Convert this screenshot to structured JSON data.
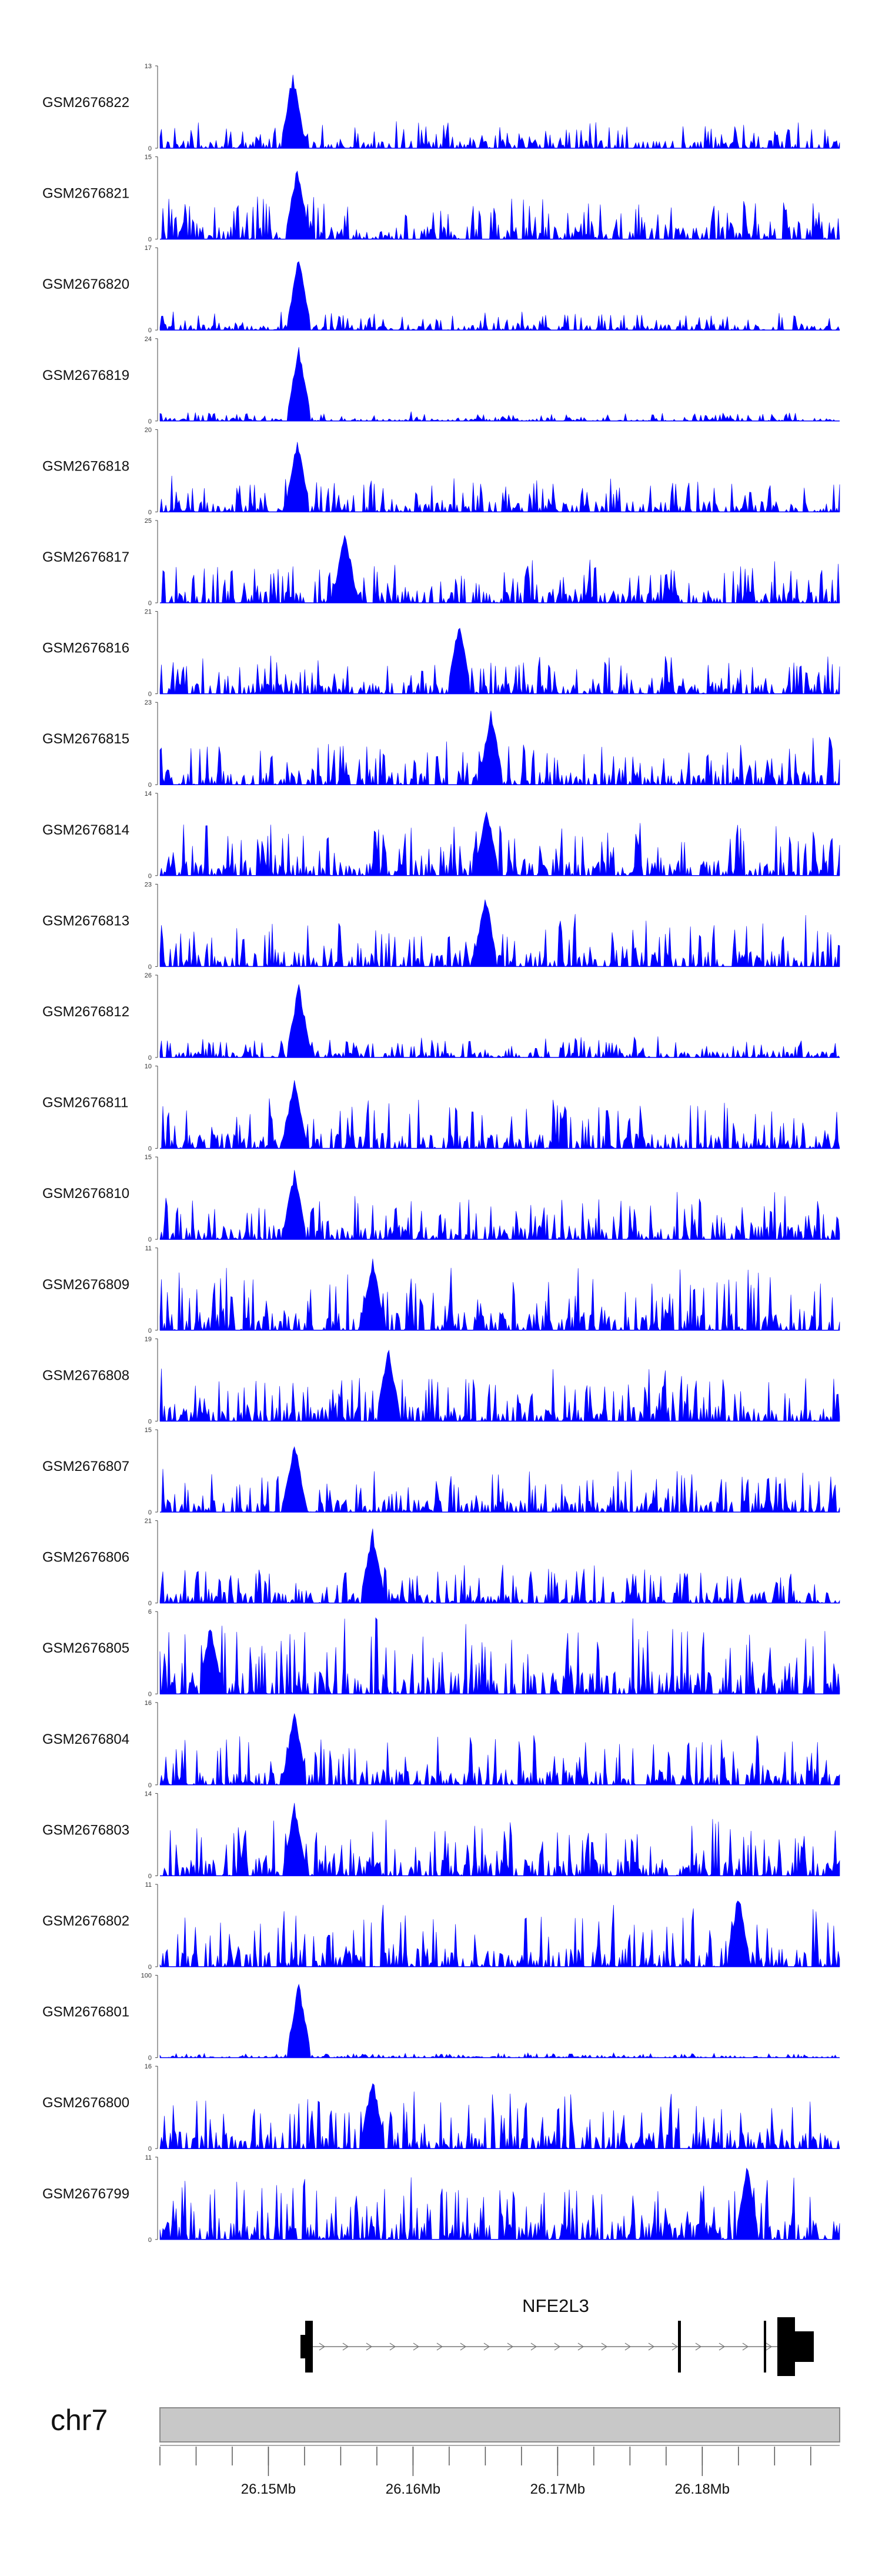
{
  "chart_data": {
    "type": "area",
    "title": "",
    "region": {
      "chromosome": "chr7",
      "start_mb": 26.1425,
      "end_mb": 26.1895
    },
    "tracks": [
      {
        "name": "GSM2676822",
        "ymax": "13",
        "ymin": "0",
        "peak_mb": 26.1517,
        "peak_frac": 0.98,
        "noise_frac": 0.28,
        "seed": 11
      },
      {
        "name": "GSM2676821",
        "ymax": "15",
        "ymin": "0",
        "peak_mb": 26.152,
        "peak_frac": 0.95,
        "noise_frac": 0.45,
        "seed": 12
      },
      {
        "name": "GSM2676820",
        "ymax": "17",
        "ymin": "0",
        "peak_mb": 26.1521,
        "peak_frac": 0.96,
        "noise_frac": 0.2,
        "seed": 13
      },
      {
        "name": "GSM2676819",
        "ymax": "24",
        "ymin": "0",
        "peak_mb": 26.1521,
        "peak_frac": 0.98,
        "noise_frac": 0.1,
        "seed": 14
      },
      {
        "name": "GSM2676818",
        "ymax": "20",
        "ymin": "0",
        "peak_mb": 26.152,
        "peak_frac": 0.97,
        "noise_frac": 0.38,
        "seed": 15
      },
      {
        "name": "GSM2676817",
        "ymax": "25",
        "ymin": "0",
        "peak_mb": 26.1553,
        "peak_frac": 0.95,
        "noise_frac": 0.45,
        "seed": 16
      },
      {
        "name": "GSM2676816",
        "ymax": "21",
        "ymin": "0",
        "peak_mb": 26.1632,
        "peak_frac": 0.96,
        "noise_frac": 0.4,
        "seed": 17
      },
      {
        "name": "GSM2676815",
        "ymax": "23",
        "ymin": "0",
        "peak_mb": 26.1654,
        "peak_frac": 0.97,
        "noise_frac": 0.5,
        "seed": 18
      },
      {
        "name": "GSM2676814",
        "ymax": "14",
        "ymin": "0",
        "peak_mb": 26.1651,
        "peak_frac": 0.92,
        "noise_frac": 0.55,
        "seed": 19
      },
      {
        "name": "GSM2676813",
        "ymax": "23",
        "ymin": "0",
        "peak_mb": 26.165,
        "peak_frac": 0.96,
        "noise_frac": 0.55,
        "seed": 20
      },
      {
        "name": "GSM2676812",
        "ymax": "26",
        "ymin": "0",
        "peak_mb": 26.1521,
        "peak_frac": 0.96,
        "noise_frac": 0.22,
        "seed": 21
      },
      {
        "name": "GSM2676811",
        "ymax": "10",
        "ymin": "0",
        "peak_mb": 26.1518,
        "peak_frac": 0.94,
        "noise_frac": 0.55,
        "seed": 22
      },
      {
        "name": "GSM2676810",
        "ymax": "15",
        "ymin": "0",
        "peak_mb": 26.1518,
        "peak_frac": 0.9,
        "noise_frac": 0.5,
        "seed": 23
      },
      {
        "name": "GSM2676809",
        "ymax": "11",
        "ymin": "0",
        "peak_mb": 26.1572,
        "peak_frac": 0.95,
        "noise_frac": 0.65,
        "seed": 24
      },
      {
        "name": "GSM2676808",
        "ymax": "19",
        "ymin": "0",
        "peak_mb": 26.1583,
        "peak_frac": 0.95,
        "noise_frac": 0.55,
        "seed": 25
      },
      {
        "name": "GSM2676807",
        "ymax": "15",
        "ymin": "0",
        "peak_mb": 26.1518,
        "peak_frac": 0.92,
        "noise_frac": 0.45,
        "seed": 26
      },
      {
        "name": "GSM2676806",
        "ymax": "21",
        "ymin": "0",
        "peak_mb": 26.1572,
        "peak_frac": 0.95,
        "noise_frac": 0.4,
        "seed": 27
      },
      {
        "name": "GSM2676805",
        "ymax": "6",
        "ymin": "0",
        "peak_mb": 26.146,
        "peak_frac": 0.92,
        "noise_frac": 0.8,
        "seed": 28
      },
      {
        "name": "GSM2676804",
        "ymax": "16",
        "ymin": "0",
        "peak_mb": 26.1518,
        "peak_frac": 0.95,
        "noise_frac": 0.55,
        "seed": 29
      },
      {
        "name": "GSM2676803",
        "ymax": "14",
        "ymin": "0",
        "peak_mb": 26.1518,
        "peak_frac": 0.95,
        "noise_frac": 0.6,
        "seed": 30
      },
      {
        "name": "GSM2676802",
        "ymax": "11",
        "ymin": "0",
        "peak_mb": 26.1825,
        "peak_frac": 0.95,
        "noise_frac": 0.65,
        "seed": 31
      },
      {
        "name": "GSM2676801",
        "ymax": "100",
        "ymin": "0",
        "peak_mb": 26.1521,
        "peak_frac": 0.98,
        "noise_frac": 0.05,
        "seed": 32
      },
      {
        "name": "GSM2676800",
        "ymax": "16",
        "ymin": "0",
        "peak_mb": 26.1572,
        "peak_frac": 0.95,
        "noise_frac": 0.6,
        "seed": 33
      },
      {
        "name": "GSM2676799",
        "ymax": "11",
        "ymin": "0",
        "peak_mb": 26.1831,
        "peak_frac": 0.95,
        "noise_frac": 0.65,
        "seed": 34
      }
    ],
    "gene": {
      "name": "NFE2L3",
      "start_mb": 26.1525,
      "end_mb": 26.1875,
      "strand": "+",
      "exons_mb": [
        [
          26.1524,
          26.1532
        ],
        [
          26.178,
          26.1782
        ],
        [
          26.1833,
          26.1835
        ],
        [
          26.184,
          26.1862
        ]
      ]
    },
    "x_axis": {
      "unit": "Mb",
      "major_ticks_mb": [
        26.15,
        26.16,
        26.17,
        26.18
      ],
      "major_labels": [
        "26.15Mb",
        "26.16Mb",
        "26.17Mb",
        "26.18Mb"
      ],
      "minor_step_mb": 0.0025
    },
    "colors": {
      "signal": "#0000ff",
      "gene": "#000000",
      "ideogram_fill": "#c8c8c8",
      "ideogram_stroke": "#8a8a8a",
      "axis": "#555555"
    }
  }
}
